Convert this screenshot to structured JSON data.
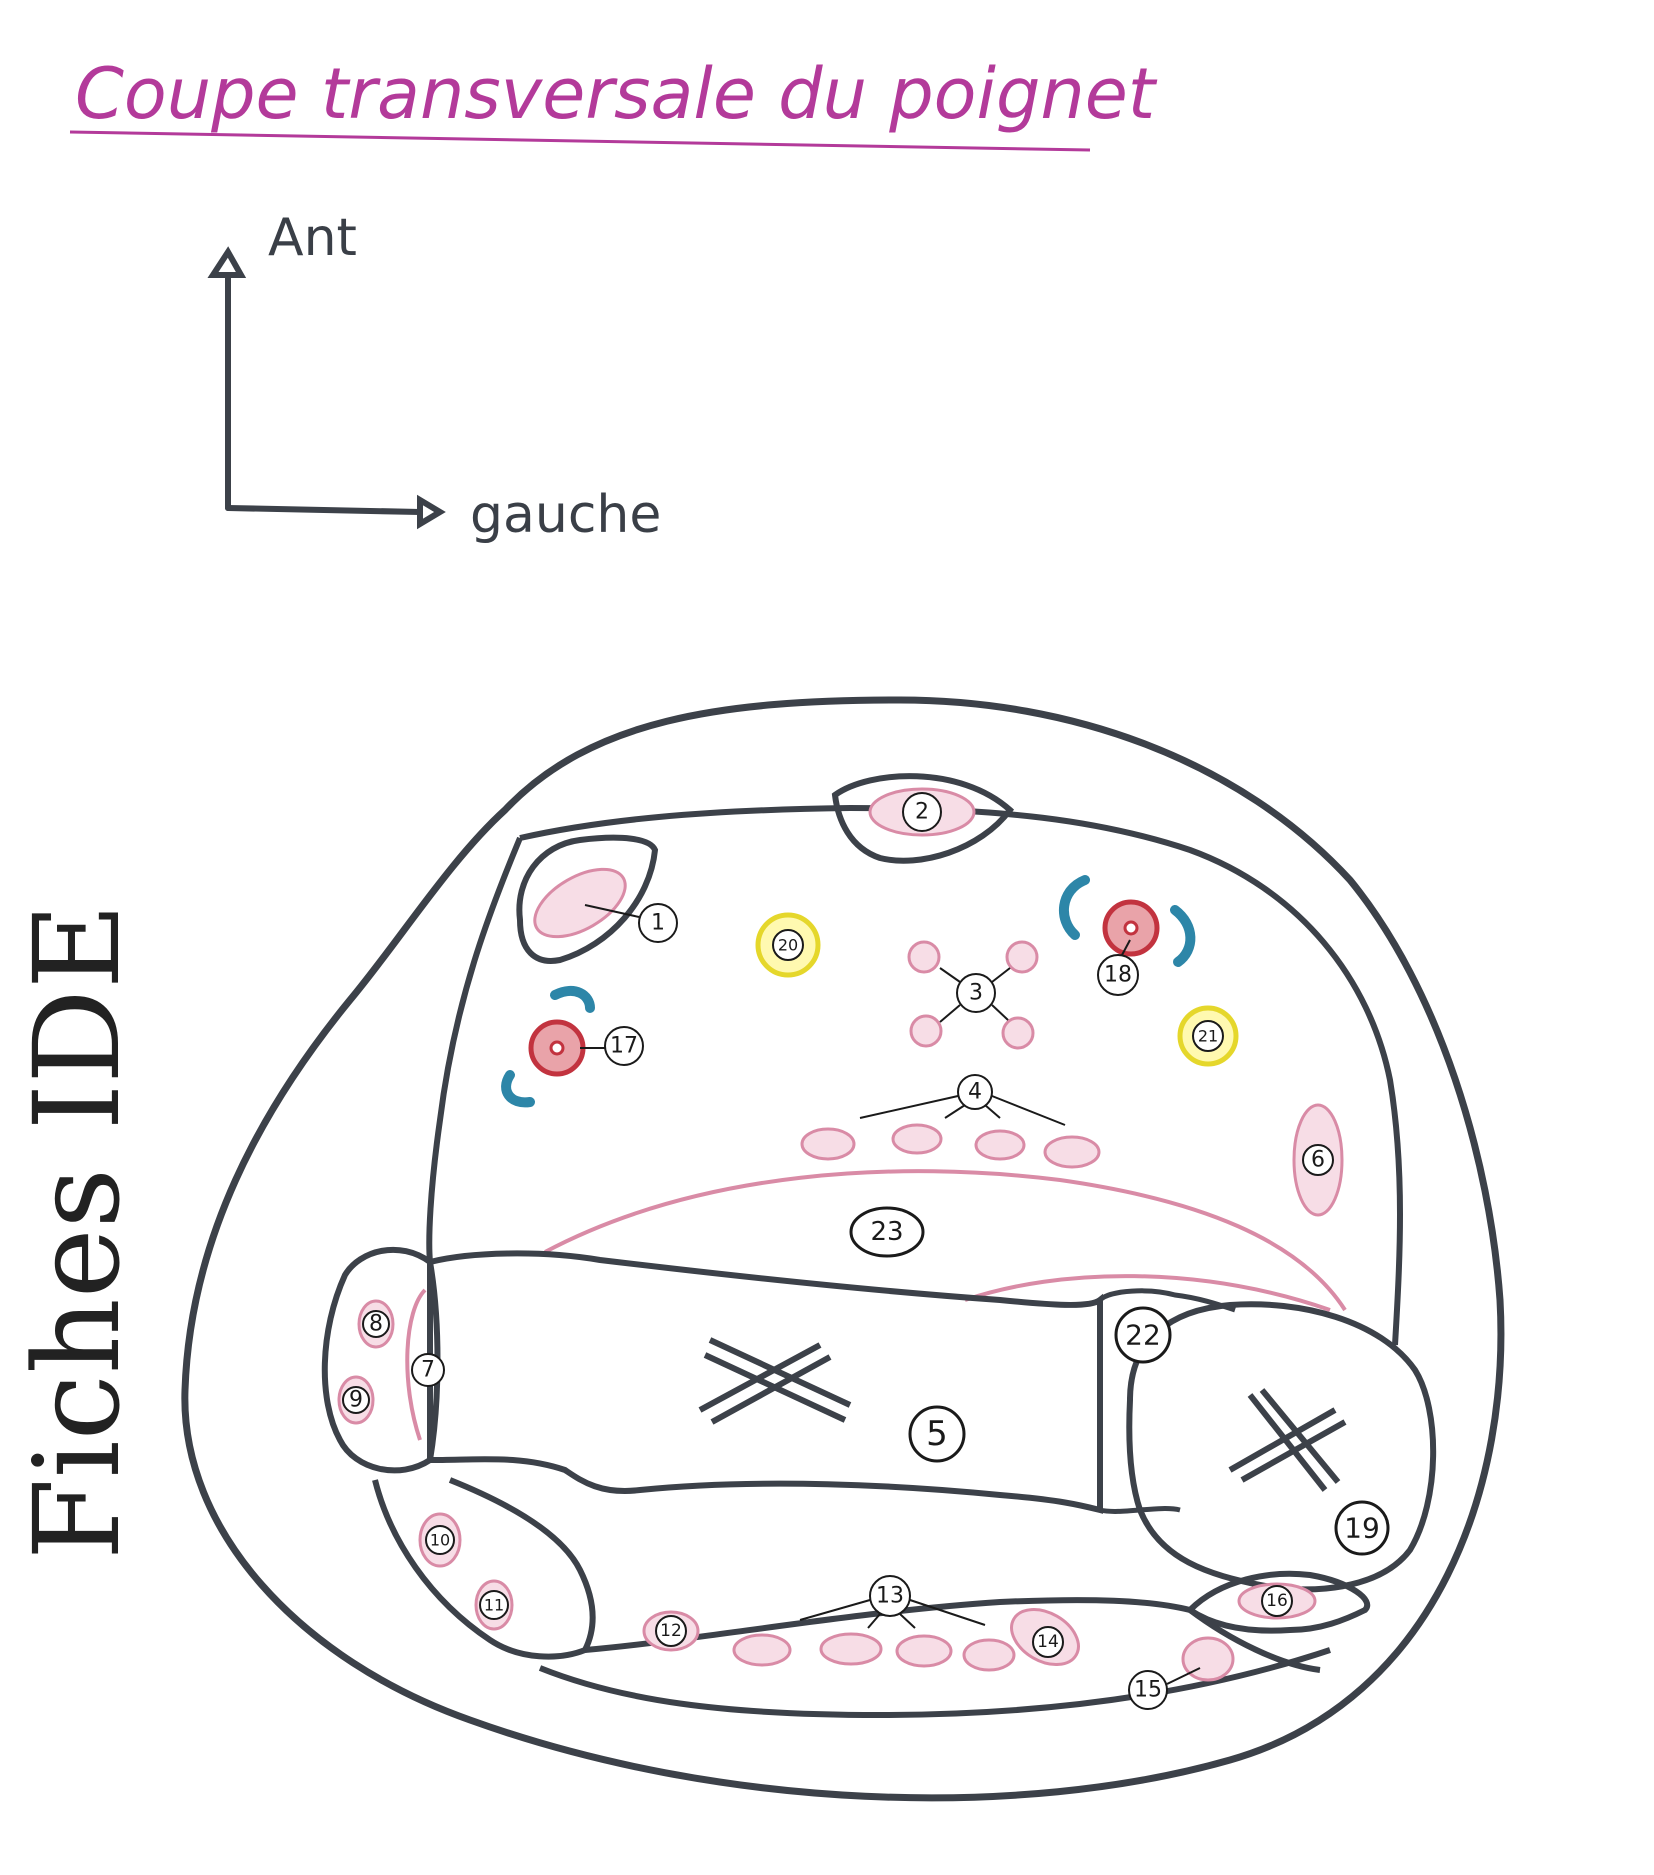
{
  "title": "Coupe transversale du poignet",
  "orientation": {
    "up": "Ant",
    "right": "gauche"
  },
  "watermark": "Fiches IDE",
  "labels": [
    "1",
    "2",
    "3",
    "4",
    "5",
    "6",
    "7",
    "8",
    "9",
    "10",
    "11",
    "12",
    "13",
    "14",
    "15",
    "16",
    "17",
    "18",
    "19",
    "20",
    "21",
    "22",
    "23"
  ],
  "colors": {
    "outline": "#3c4149",
    "tendon": "#d98ba6",
    "tendon_fill": "#f7dde6",
    "artery": "#c2333f",
    "vein": "#2d86a8",
    "nerve": "#e5d72b",
    "title": "#b33a9a",
    "ligament": "#d98ba6"
  }
}
